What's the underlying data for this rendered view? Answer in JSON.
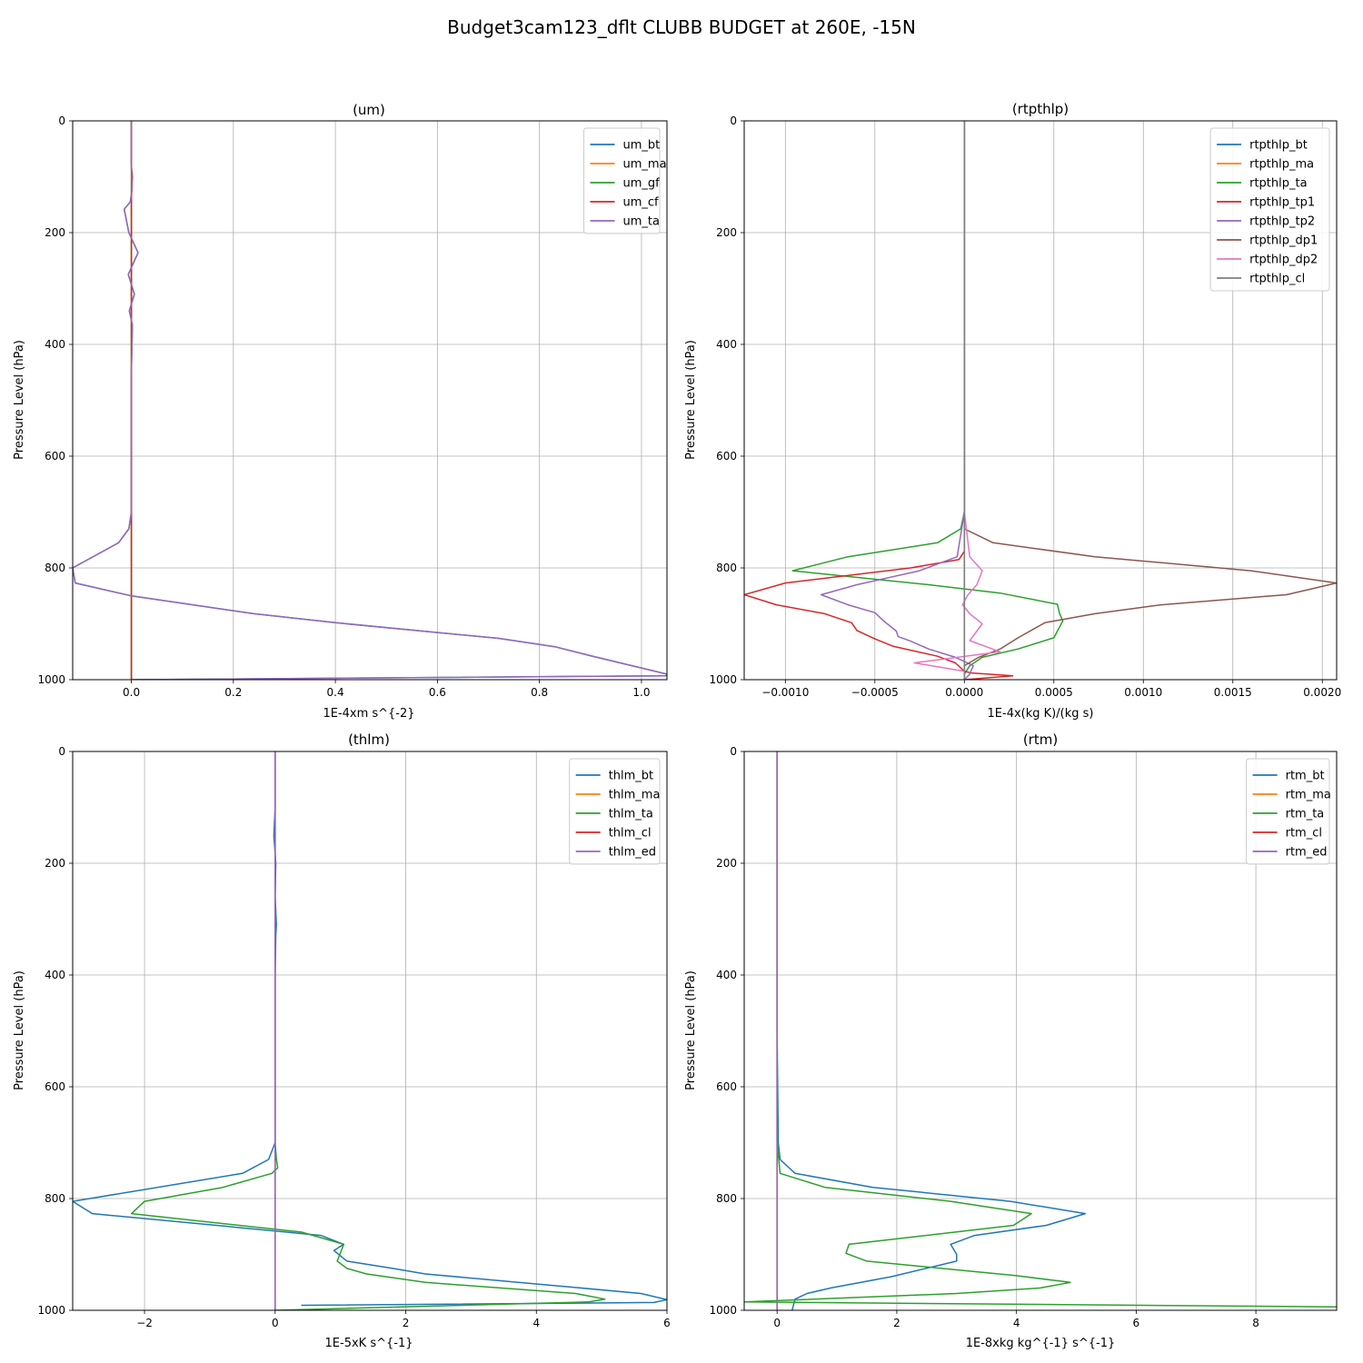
{
  "figure": {
    "title": "Budget3cam123_dflt CLUBB BUDGET at 260E, -15N"
  },
  "chart_data": [
    {
      "type": "line",
      "title": "(um)",
      "xlabel": "1E-4xm s^{-2}",
      "ylabel": "Pressure Level (hPa)",
      "xlim": [
        -0.115,
        1.05
      ],
      "ylim": [
        1000,
        0
      ],
      "xticks": [
        0.0,
        0.2,
        0.4,
        0.6,
        0.8,
        1.0
      ],
      "xticklabels": [
        "0.0",
        "0.2",
        "0.4",
        "0.6",
        "0.8",
        "1.0"
      ],
      "yticks": [
        0,
        200,
        400,
        600,
        800,
        1000
      ],
      "yticklabels": [
        "0",
        "200",
        "400",
        "600",
        "800",
        "1000"
      ],
      "grid": true,
      "legend_position": "top-right",
      "series": [
        {
          "name": "um_bt",
          "color": "#1f77b4",
          "x": [
            0,
            0,
            0.001,
            -0.002,
            -0.014,
            -0.005,
            0.013,
            -0.006,
            0.006,
            -0.004,
            0.002,
            0,
            0,
            0,
            -0.005,
            -0.025,
            -0.115,
            -0.11,
            0,
            0.24,
            0.4,
            0.72,
            0.83,
            0.9,
            1.05,
            1.05,
            0
          ],
          "y": [
            0,
            75,
            125,
            145,
            158,
            200,
            236,
            275,
            310,
            340,
            365,
            450,
            550,
            700,
            730,
            755,
            800,
            827,
            850,
            882,
            898,
            926,
            941,
            957,
            990,
            993,
            1000
          ]
        },
        {
          "name": "um_ma",
          "color": "#ff7f0e",
          "x": [
            0,
            0,
            0,
            0
          ],
          "y": [
            0,
            500,
            900,
            1000
          ]
        },
        {
          "name": "um_gf",
          "color": "#2ca02c",
          "x": [
            0,
            0,
            0,
            0
          ],
          "y": [
            0,
            500,
            900,
            1000
          ]
        },
        {
          "name": "um_cf",
          "color": "#d62728",
          "x": [
            0,
            0,
            0.002,
            0,
            0,
            0
          ],
          "y": [
            0,
            80,
            100,
            140,
            500,
            1000
          ]
        },
        {
          "name": "um_ta",
          "color": "#9467bd",
          "x": [
            0,
            0,
            0.001,
            -0.002,
            -0.014,
            -0.005,
            0.013,
            -0.006,
            0.006,
            -0.004,
            0.002,
            0,
            0,
            0,
            -0.005,
            -0.025,
            -0.115,
            -0.11,
            0,
            0.24,
            0.4,
            0.72,
            0.83,
            0.9,
            1.05,
            1.05,
            0
          ],
          "y": [
            0,
            75,
            125,
            145,
            158,
            200,
            236,
            275,
            310,
            340,
            365,
            450,
            550,
            700,
            730,
            755,
            800,
            827,
            850,
            882,
            898,
            926,
            941,
            957,
            990,
            993,
            1000
          ]
        }
      ]
    },
    {
      "type": "line",
      "title": "(rtpthlp)",
      "xlabel": "1E-4x(kg K)/(kg s)",
      "ylabel": "Pressure Level (hPa)",
      "xlim": [
        -0.00123,
        0.00208
      ],
      "ylim": [
        1000,
        0
      ],
      "xticks": [
        -0.001,
        -0.0005,
        0,
        0.0005,
        0.001,
        0.0015,
        0.002
      ],
      "xticklabels": [
        "−0.0010",
        "−0.0005",
        "0.0000",
        "0.0005",
        "0.0010",
        "0.0015",
        "0.0020"
      ],
      "yticks": [
        0,
        200,
        400,
        600,
        800,
        1000
      ],
      "yticklabels": [
        "0",
        "200",
        "400",
        "600",
        "800",
        "1000"
      ],
      "grid": true,
      "legend_position": "top-right",
      "series": [
        {
          "name": "rtpthlp_bt",
          "color": "#1f77b4",
          "x": [
            0,
            0,
            0
          ],
          "y": [
            0,
            700,
            1000
          ]
        },
        {
          "name": "rtpthlp_ma",
          "color": "#ff7f0e",
          "x": [
            0,
            0,
            0
          ],
          "y": [
            0,
            700,
            1000
          ]
        },
        {
          "name": "rtpthlp_ta",
          "color": "#2ca02c",
          "x": [
            0,
            0,
            -2e-05,
            -0.00015,
            -0.00065,
            -0.00096,
            -0.0002,
            0.0002,
            0.00052,
            0.00053,
            0.00055,
            0.0005,
            0.0003,
            0.0001,
            3e-05,
            1e-05,
            0,
            0
          ],
          "y": [
            0,
            700,
            730,
            755,
            780,
            805,
            830,
            845,
            865,
            880,
            895,
            925,
            945,
            960,
            975,
            985,
            990,
            1000
          ]
        },
        {
          "name": "rtpthlp_tp1",
          "color": "#d62728",
          "x": [
            0,
            0,
            -3e-05,
            -0.0003,
            -0.001,
            -0.00123,
            -0.00105,
            -0.00078,
            -0.00063,
            -0.0006,
            -0.0005,
            -0.0004,
            -0.00015,
            -5e-05,
            0,
            4e-05,
            0.00027,
            0
          ],
          "y": [
            0,
            770,
            785,
            800,
            827,
            848,
            866,
            882,
            898,
            912,
            927,
            940,
            958,
            970,
            985,
            988,
            993,
            1000
          ]
        },
        {
          "name": "rtpthlp_tp2",
          "color": "#9467bd",
          "x": [
            0,
            0,
            -4e-05,
            -0.00025,
            -0.0006,
            -0.0008,
            -0.00065,
            -0.0005,
            -0.00045,
            -0.00038,
            -0.00037,
            -0.0003,
            -0.0002,
            -5e-05,
            5e-05,
            3e-05,
            0
          ],
          "y": [
            0,
            700,
            780,
            805,
            830,
            848,
            866,
            880,
            895,
            913,
            923,
            931,
            945,
            960,
            975,
            990,
            1000
          ]
        },
        {
          "name": "rtpthlp_dp1",
          "color": "#8c564b",
          "x": [
            0,
            0,
            0,
            0.00016,
            0.00073,
            0.0016,
            0.00208,
            0.0018,
            0.0011,
            0.00073,
            0.00045,
            0.0003,
            0.0002,
            8e-05,
            0,
            0
          ],
          "y": [
            0,
            700,
            730,
            755,
            780,
            805,
            827,
            848,
            866,
            882,
            898,
            925,
            945,
            960,
            975,
            1000
          ]
        },
        {
          "name": "rtpthlp_dp2",
          "color": "#e377c2",
          "x": [
            0,
            0,
            3e-05,
            0.0001,
            7e-05,
            2e-05,
            -1e-05,
            3e-05,
            0.0001,
            3e-05,
            0.0002,
            -0.00028,
            0,
            0
          ],
          "y": [
            0,
            700,
            780,
            805,
            830,
            848,
            866,
            882,
            900,
            930,
            950,
            970,
            985,
            1000
          ]
        },
        {
          "name": "rtpthlp_cl",
          "color": "#7f7f7f",
          "x": [
            0,
            0,
            0
          ],
          "y": [
            0,
            500,
            1000
          ]
        }
      ]
    },
    {
      "type": "line",
      "title": "(thlm)",
      "xlabel": "1E-5xK s^{-1}",
      "ylabel": "Pressure Level (hPa)",
      "xlim": [
        -3.1,
        6
      ],
      "ylim": [
        1000,
        0
      ],
      "xticks": [
        -2,
        0,
        2,
        4,
        6
      ],
      "xticklabels": [
        "−2",
        "0",
        "2",
        "4",
        "6"
      ],
      "yticks": [
        0,
        200,
        400,
        600,
        800,
        1000
      ],
      "yticklabels": [
        "0",
        "200",
        "400",
        "600",
        "800",
        "1000"
      ],
      "grid": true,
      "legend_position": "top-right",
      "series": [
        {
          "name": "thlm_bt",
          "color": "#1f77b4",
          "x": [
            0,
            0,
            -0.02,
            0.01,
            0,
            0.02,
            0.01,
            0,
            0,
            -0.1,
            -0.5,
            -3.1,
            -2.8,
            0,
            0.7,
            1.05,
            0.9,
            1.1,
            1.8,
            2.3,
            4.4,
            5.6,
            6,
            5.8,
            0.4
          ],
          "y": [
            0,
            100,
            150,
            200,
            260,
            310,
            330,
            400,
            700,
            730,
            755,
            805,
            827,
            858,
            866,
            882,
            893,
            912,
            925,
            935,
            957,
            970,
            981,
            986,
            991
          ]
        },
        {
          "name": "thlm_ma",
          "color": "#ff7f0e",
          "x": [
            0,
            0,
            0
          ],
          "y": [
            0,
            500,
            1000
          ]
        },
        {
          "name": "thlm_ta",
          "color": "#2ca02c",
          "x": [
            0,
            0,
            0,
            0.02,
            0.04,
            -0.05,
            -0.8,
            -2.0,
            -2.2,
            0.4,
            1.05,
            0.95,
            1.1,
            1.4,
            2.3,
            4.6,
            5.05,
            4.8,
            0
          ],
          "y": [
            0,
            500,
            700,
            730,
            745,
            755,
            780,
            805,
            827,
            860,
            882,
            912,
            925,
            935,
            950,
            970,
            980,
            985,
            1000
          ]
        },
        {
          "name": "thlm_cl",
          "color": "#d62728",
          "x": [
            0,
            0,
            0
          ],
          "y": [
            0,
            500,
            1000
          ]
        },
        {
          "name": "thlm_ed",
          "color": "#9467bd",
          "x": [
            0,
            0,
            0
          ],
          "y": [
            0,
            500,
            1000
          ]
        }
      ]
    },
    {
      "type": "line",
      "title": "(rtm)",
      "xlabel": "1E-8xkg kg^{-1} s^{-1}",
      "ylabel": "Pressure Level (hPa)",
      "xlim": [
        -0.55,
        9.35
      ],
      "ylim": [
        1000,
        0
      ],
      "xticks": [
        0,
        2,
        4,
        6,
        8
      ],
      "xticklabels": [
        "0",
        "2",
        "4",
        "6",
        "8"
      ],
      "yticks": [
        0,
        200,
        400,
        600,
        800,
        1000
      ],
      "yticklabels": [
        "0",
        "200",
        "400",
        "600",
        "800",
        "1000"
      ],
      "grid": true,
      "legend_position": "top-right",
      "series": [
        {
          "name": "rtm_bt",
          "color": "#1f77b4",
          "x": [
            0,
            0,
            0.02,
            0.05,
            0.3,
            1.6,
            3.9,
            5.15,
            4.5,
            3.3,
            2.9,
            3.0,
            3.0,
            1.9,
            0.9,
            0.5,
            0.3,
            0.25
          ],
          "y": [
            0,
            500,
            700,
            730,
            755,
            780,
            805,
            827,
            848,
            866,
            882,
            900,
            912,
            940,
            960,
            970,
            980,
            1000
          ]
        },
        {
          "name": "rtm_ma",
          "color": "#ff7f0e",
          "x": [
            0,
            0,
            0
          ],
          "y": [
            0,
            500,
            1000
          ]
        },
        {
          "name": "rtm_ta",
          "color": "#2ca02c",
          "x": [
            0,
            0,
            0,
            0.05,
            0.8,
            2.9,
            4.25,
            3.95,
            1.2,
            1.15,
            1.5,
            4.0,
            4.9,
            4.4,
            3.0,
            -0.55,
            9.35
          ],
          "y": [
            0,
            500,
            700,
            755,
            780,
            805,
            827,
            848,
            882,
            898,
            912,
            938,
            950,
            960,
            970,
            985,
            994
          ]
        },
        {
          "name": "rtm_cl",
          "color": "#d62728",
          "x": [
            0,
            0,
            0
          ],
          "y": [
            0,
            500,
            1000
          ]
        },
        {
          "name": "rtm_ed",
          "color": "#9467bd",
          "x": [
            0,
            0,
            0
          ],
          "y": [
            0,
            500,
            1000
          ]
        }
      ]
    }
  ]
}
